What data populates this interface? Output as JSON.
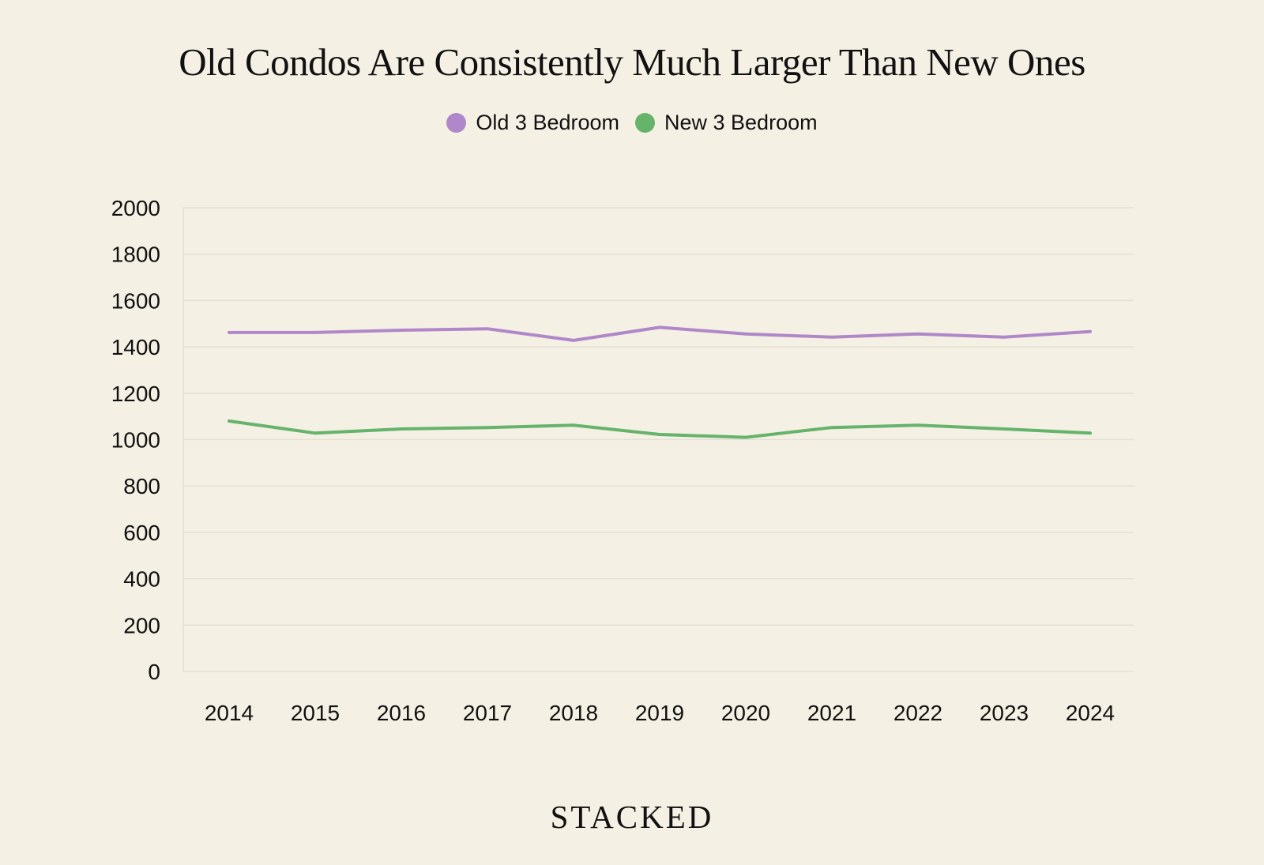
{
  "chart_data": {
    "type": "line",
    "title": "Old Condos Are Consistently Much Larger Than New Ones",
    "xlabel": "",
    "ylabel": "",
    "x": [
      "2014",
      "2015",
      "2016",
      "2017",
      "2018",
      "2019",
      "2020",
      "2021",
      "2022",
      "2023",
      "2024"
    ],
    "ylim": [
      0,
      2000
    ],
    "yticks": [
      "0",
      "200",
      "400",
      "600",
      "800",
      "1000",
      "1200",
      "1400",
      "1600",
      "1800",
      "2000"
    ],
    "grid": true,
    "legend_position": "top-center",
    "series": [
      {
        "name": "Old 3 Bedroom",
        "color": "#b087c9",
        "values": [
          1462,
          1462,
          1472,
          1478,
          1428,
          1484,
          1456,
          1442,
          1456,
          1442,
          1466
        ]
      },
      {
        "name": "New 3 Bedroom",
        "color": "#66b36b",
        "values": [
          1080,
          1028,
          1046,
          1052,
          1062,
          1022,
          1010,
          1052,
          1062,
          1046,
          1028
        ]
      }
    ]
  },
  "brand": "STACKED"
}
